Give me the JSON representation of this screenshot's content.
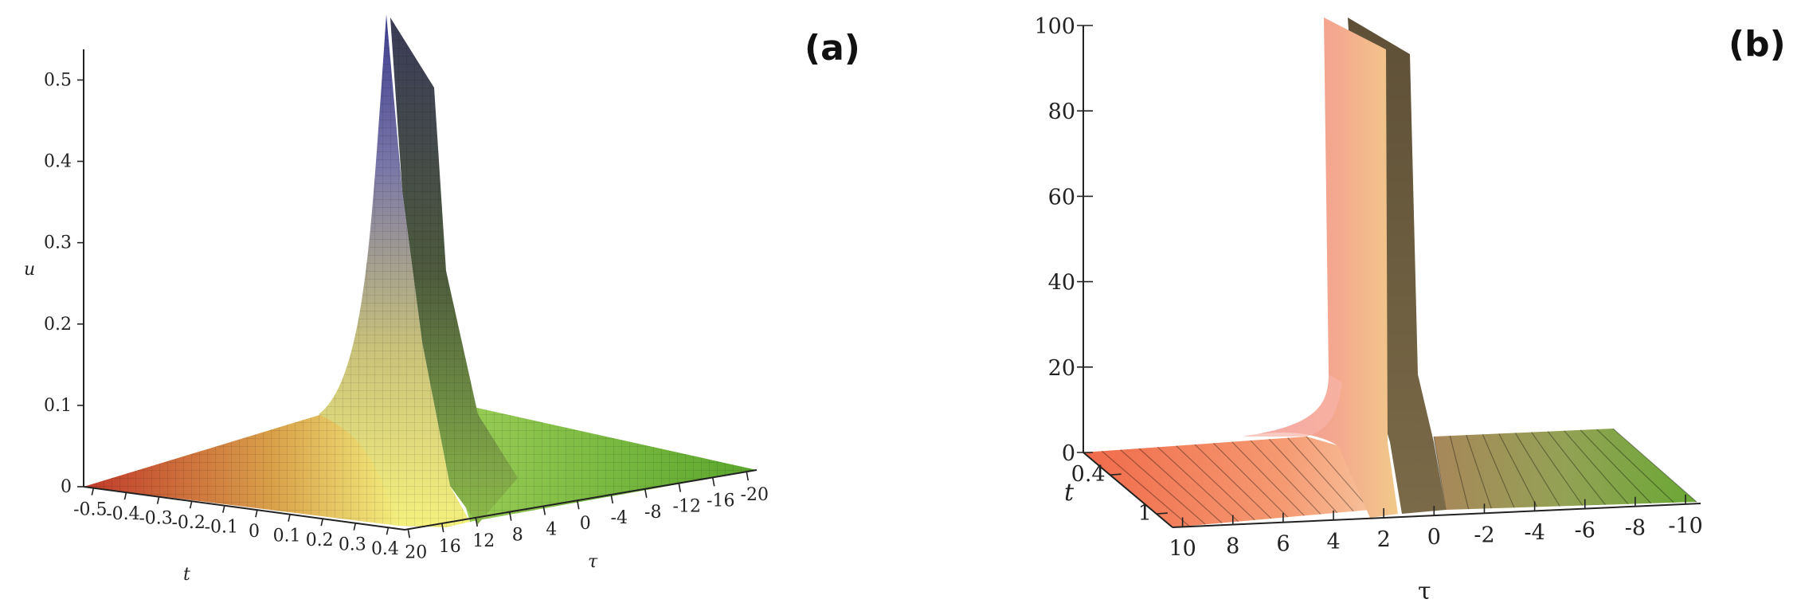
{
  "chart_data": [
    {
      "type": "surface",
      "panel_label": "(a)",
      "axis_labels": {
        "t": "t",
        "tau": "τ",
        "u": "u"
      },
      "t_ticks": [
        "-0.5",
        "-0.4",
        "-0.3",
        "-0.2",
        "-0.1",
        "0",
        "0.1",
        "0.2",
        "0.3",
        "0.4"
      ],
      "tau_ticks": [
        "20",
        "16",
        "12",
        "8",
        "4",
        "0",
        "-4",
        "-8",
        "-12",
        "-16",
        "-20"
      ],
      "u_ticks": [
        "0",
        "0.1",
        "0.2",
        "0.3",
        "0.4",
        "0.5"
      ],
      "t_range": [
        -0.5,
        0.4
      ],
      "tau_range": [
        20,
        -20
      ],
      "u_range": [
        0,
        0.5
      ],
      "peak_u": 0.5,
      "colors": {
        "low": "#c0392b",
        "mid": "#f2f07a",
        "high": "#3d3d8f",
        "right": "#6aa834"
      }
    },
    {
      "type": "surface",
      "panel_label": "(b)",
      "axis_labels": {
        "t": "t",
        "tau": "τ"
      },
      "t_ticks": [
        "0.4",
        "1"
      ],
      "tau_ticks": [
        "10",
        "8",
        "6",
        "4",
        "2",
        "0",
        "-2",
        "-4",
        "-6",
        "-8",
        "-10"
      ],
      "u_ticks": [
        "0",
        "20",
        "40",
        "60",
        "80",
        "100"
      ],
      "tau_range": [
        10,
        -10
      ],
      "u_range": [
        0,
        100
      ],
      "peak_u": 100,
      "colors": {
        "front": "#f58ca0",
        "front2": "#f2c98a",
        "back": "#6a5a3e",
        "floor_left": "#f07a5a",
        "floor_right": "#6aa834"
      }
    }
  ]
}
